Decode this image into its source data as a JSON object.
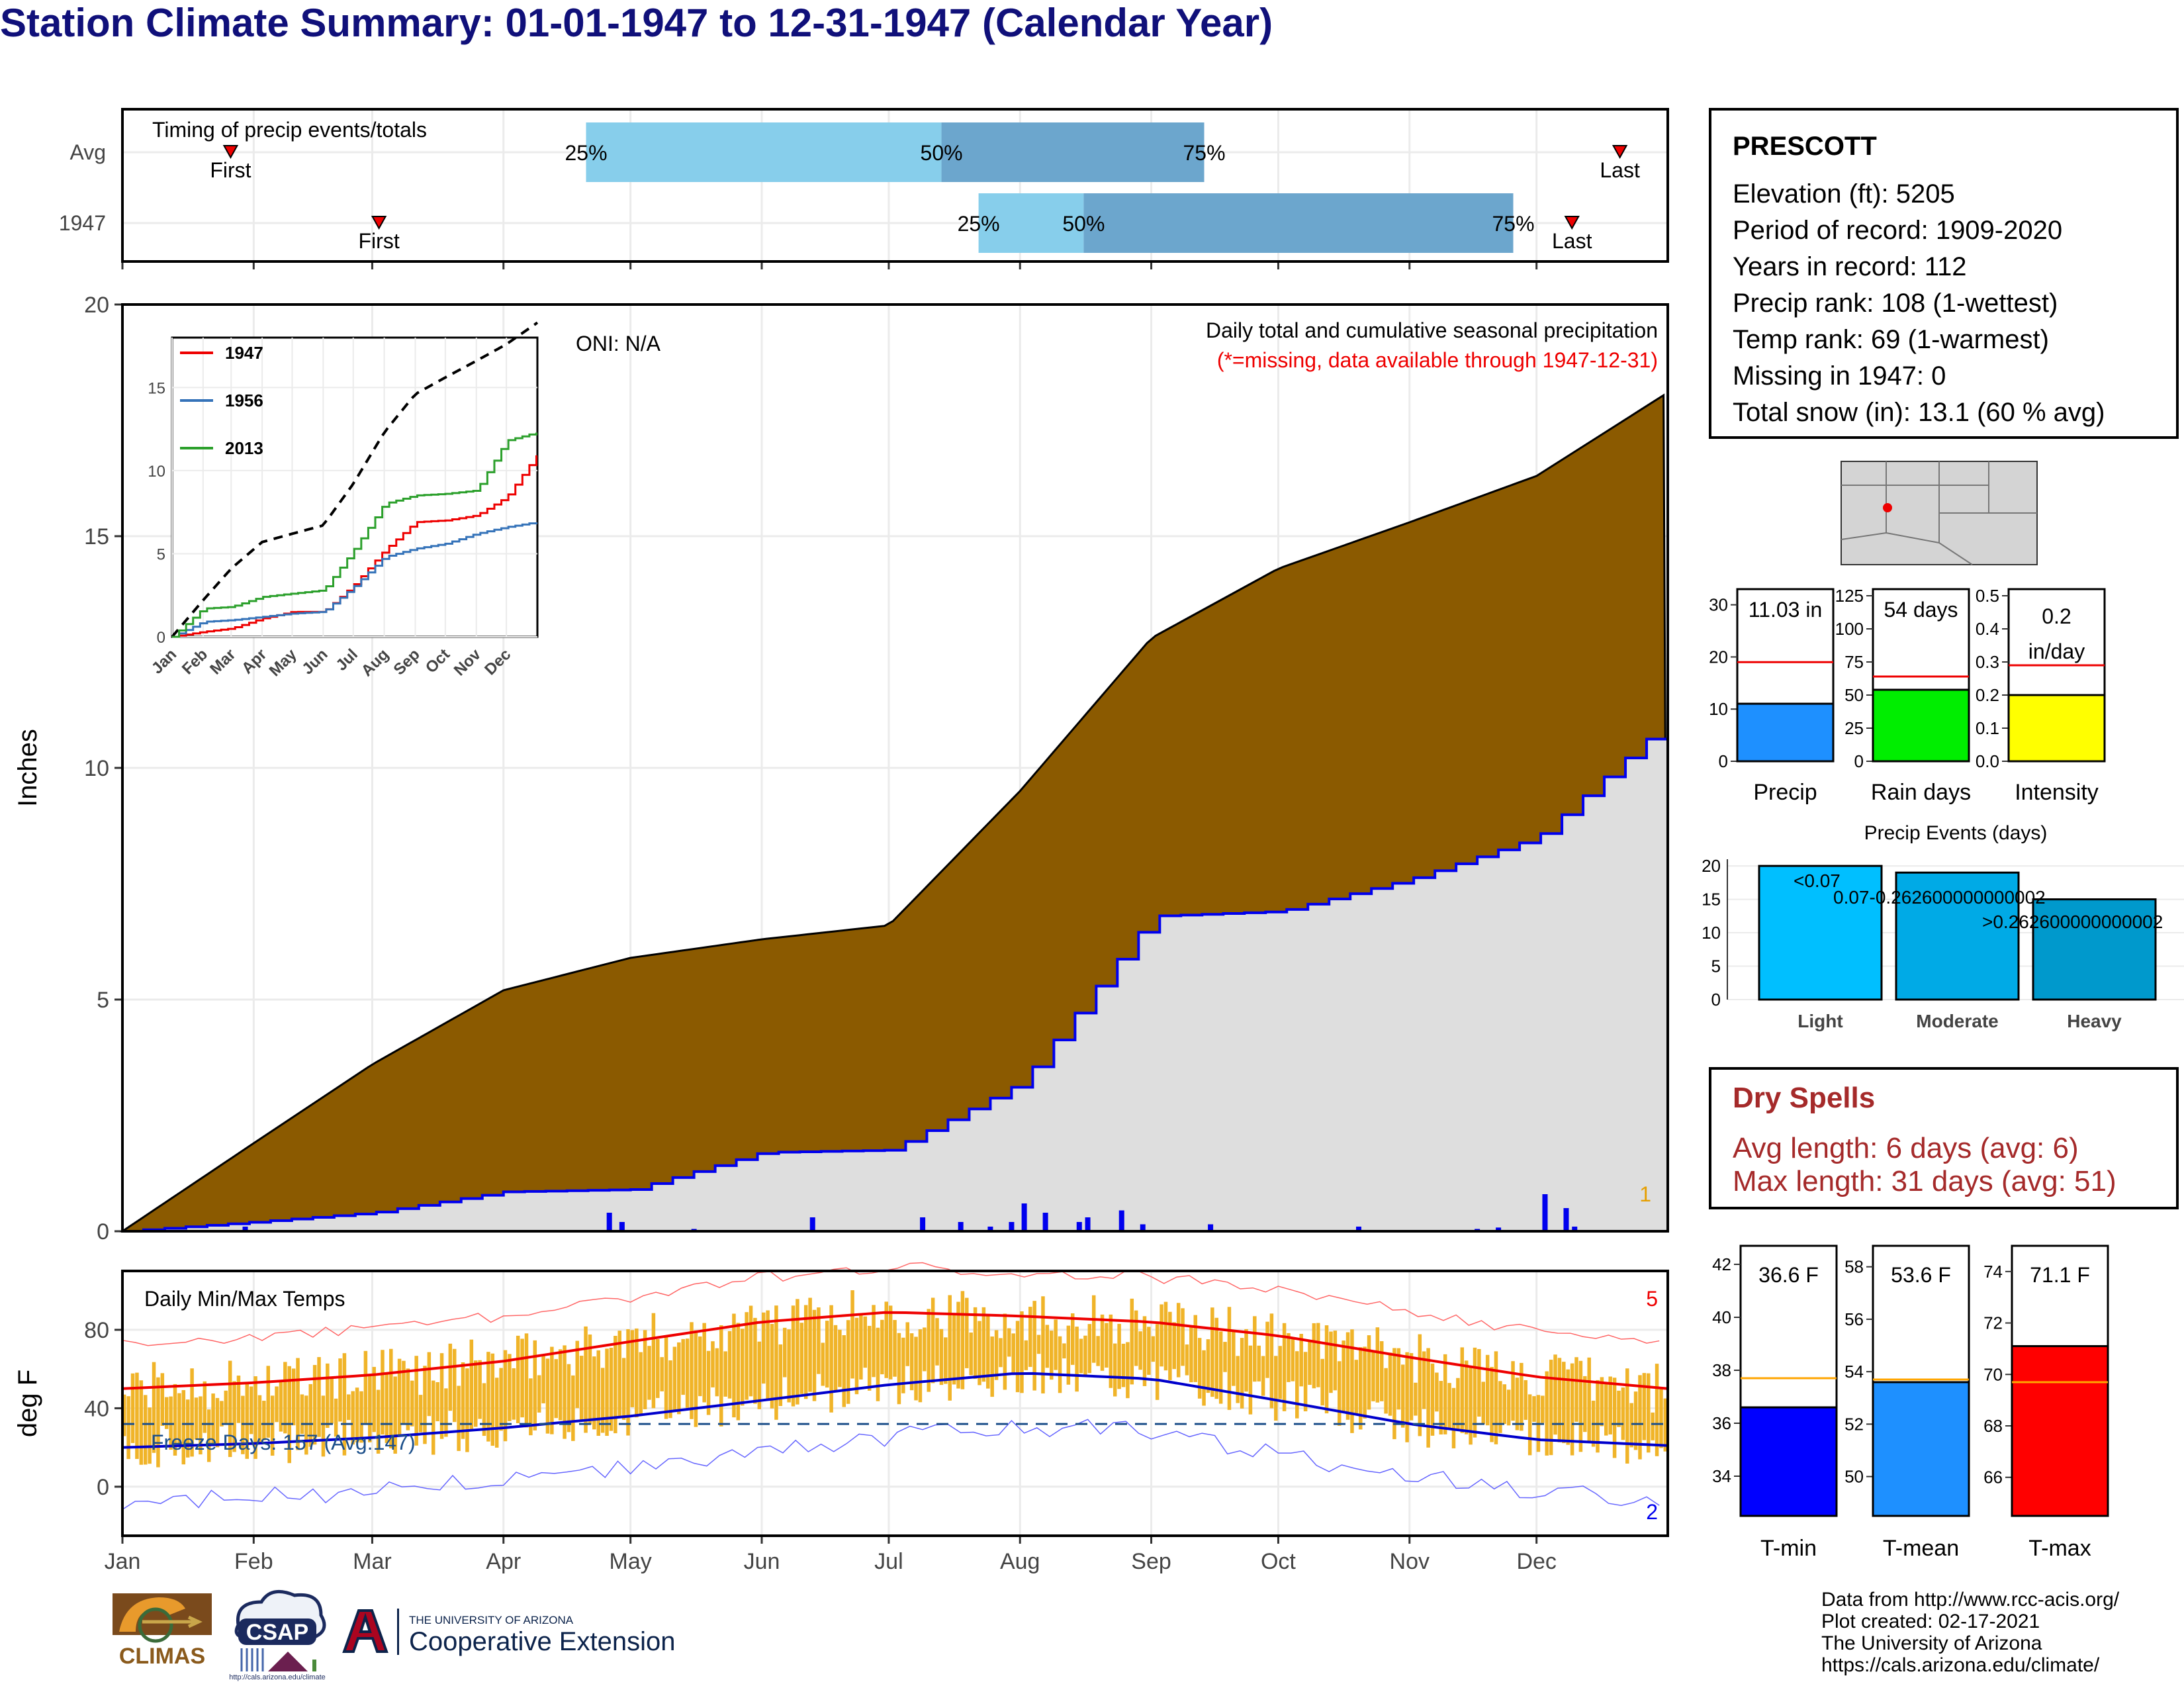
{
  "title": "Station Climate Summary: 01-01-1947 to 12-31-1947 (Calendar Year)",
  "timing": {
    "label": "Timing of precip events/totals",
    "rows": [
      {
        "name": "Avg",
        "first_label": "First",
        "last_label": "Last",
        "p25": "25%",
        "p50": "50%",
        "p75": "75%",
        "first": 0.07,
        "q25": 0.3,
        "q50": 0.53,
        "q75": 0.7,
        "last": 0.969
      },
      {
        "name": "1947",
        "first_label": "First",
        "last_label": "Last",
        "p25": "25%",
        "p50": "50%",
        "p75": "75%",
        "first": 0.166,
        "q25": 0.554,
        "q50": 0.622,
        "q75": 0.9,
        "last": 0.938
      }
    ]
  },
  "station": {
    "name": "PRESCOTT",
    "lines": [
      "Elevation (ft): 5205",
      "Period of record: 1909-2020",
      "Years in record: 112",
      "Precip rank: 108 (1-wettest)",
      "Temp rank: 69 (1-warmest)",
      "Missing in 1947: 0",
      "Total snow (in): 13.1 (60 % avg)"
    ]
  },
  "precip_panel": {
    "ylabel": "Inches",
    "oni": "ONI: N/A",
    "heading": "Daily total and cumulative seasonal precipitation",
    "note": "(*=missing, data available through 1947-12-31)",
    "corner_count": "1",
    "colors": {
      "avg": "#8b5a00",
      "year": "#dedede",
      "line": "#0000ee"
    }
  },
  "temp_panel": {
    "ylabel": "deg F",
    "heading": "Daily Min/Max Temps",
    "freeze": "Freeze Days: 157 (Avg:147)",
    "count_high": "5",
    "count_low": "2"
  },
  "months": [
    "Jan",
    "Feb",
    "Mar",
    "Apr",
    "May",
    "Jun",
    "Jul",
    "Aug",
    "Sep",
    "Oct",
    "Nov",
    "Dec"
  ],
  "inset_months": [
    "Jan",
    "Feb",
    "Mar",
    "Apr",
    "May",
    "Jun",
    "Jul",
    "Aug",
    "Sep",
    "Oct",
    "Nov",
    "Dec"
  ],
  "bars3": [
    {
      "name": "Precip",
      "value_label": "11.03 in",
      "ticks": [
        "0",
        "10",
        "20",
        "30"
      ]
    },
    {
      "name": "Rain days",
      "value_label": "54 days",
      "ticks": [
        "0",
        "25",
        "50",
        "75",
        "100",
        "125"
      ]
    },
    {
      "name": "Intensity",
      "value_label": "0.2 in/day",
      "ticks": [
        "0.0",
        "0.1",
        "0.2",
        "0.3",
        "0.4",
        "0.5"
      ]
    }
  ],
  "events": {
    "title": "Precip Events (days)",
    "ticks": [
      "0",
      "5",
      "10",
      "15",
      "20"
    ],
    "labels": [
      "<0.07",
      "0.07-0.262600000000002",
      ">0.262600000000002"
    ]
  },
  "dry_spells": {
    "title": "Dry Spells",
    "avg": "Avg length: 6 days (avg: 6)",
    "max": "Max length: 31 days (avg: 51)"
  },
  "temp_bars": [
    {
      "name": "T-min",
      "value_label": "36.6 F",
      "ticks": [
        "34",
        "36",
        "38",
        "40",
        "42"
      ]
    },
    {
      "name": "T-mean",
      "value_label": "53.6 F",
      "ticks": [
        "50",
        "52",
        "54",
        "56",
        "58"
      ]
    },
    {
      "name": "T-max",
      "value_label": "71.1 F",
      "ticks": [
        "66",
        "68",
        "70",
        "72",
        "74"
      ]
    }
  ],
  "logos": {
    "climas": "CLIMAS",
    "csap": "CSAP",
    "csap_url": "http://cals.arizona.edu/climate",
    "ua_small": "THE UNIVERSITY OF ARIZONA",
    "ua_big": "Cooperative Extension"
  },
  "footer": [
    "Data from http://www.rcc-acis.org/",
    "Plot created: 02-17-2021",
    "The University of Arizona",
    "https://cals.arizona.edu/climate/"
  ],
  "chart_data": [
    {
      "type": "area",
      "title": "Daily total and cumulative seasonal precipitation",
      "ylabel": "Inches",
      "ylim": [
        0,
        20
      ],
      "yticks": [
        0,
        5,
        10,
        15,
        20
      ],
      "x": [
        0,
        31,
        59,
        90,
        120,
        151,
        181,
        212,
        243,
        273,
        304,
        334,
        365
      ],
      "series": [
        {
          "values": [
            0,
            1.9,
            3.6,
            5.2,
            5.9,
            6.3,
            6.6,
            9.5,
            12.8,
            14.3,
            15.3,
            16.3,
            18.1
          ]
        },
        {
          "values": [
            0,
            0.2,
            0.4,
            0.85,
            0.9,
            1.7,
            1.75,
            3.2,
            6.8,
            6.9,
            7.6,
            8.5,
            11.03
          ]
        }
      ],
      "daily_events": [
        [
          29,
          0.1
        ],
        [
          115,
          0.4
        ],
        [
          118,
          0.2
        ],
        [
          135,
          0.05
        ],
        [
          163,
          0.3
        ],
        [
          189,
          0.3
        ],
        [
          198,
          0.2
        ],
        [
          205,
          0.1
        ],
        [
          210,
          0.2
        ],
        [
          213,
          0.6
        ],
        [
          218,
          0.4
        ],
        [
          226,
          0.2
        ],
        [
          228,
          0.3
        ],
        [
          236,
          0.45
        ],
        [
          241,
          0.15
        ],
        [
          257,
          0.15
        ],
        [
          292,
          0.1
        ],
        [
          320,
          0.05
        ],
        [
          325,
          0.08
        ],
        [
          336,
          0.8
        ],
        [
          341,
          0.5
        ],
        [
          343,
          0.1
        ]
      ]
    },
    {
      "type": "line",
      "title": "",
      "ylim": [
        0,
        18
      ],
      "yticks": [
        0,
        5,
        10,
        15
      ],
      "x": [
        0,
        31,
        59,
        90,
        120,
        151,
        181,
        212,
        243,
        273,
        304,
        334,
        365
      ],
      "series": [
        {
          "name": "",
          "values": [
            0,
            2.2,
            4.1,
            5.7,
            6.2,
            6.7,
            9.2,
            12.3,
            14.6,
            15.6,
            16.6,
            17.6,
            18.9
          ]
        },
        {
          "name": "1947",
          "values": [
            0,
            0.3,
            0.5,
            1.1,
            1.5,
            1.5,
            3.1,
            5.2,
            6.9,
            7.0,
            7.3,
            8.4,
            11.0
          ]
        },
        {
          "name": "1956",
          "values": [
            0,
            0.9,
            1.0,
            1.2,
            1.4,
            1.5,
            3.0,
            4.8,
            5.3,
            5.6,
            6.2,
            6.6,
            6.9
          ]
        },
        {
          "name": "2013",
          "values": [
            0,
            1.7,
            1.8,
            2.4,
            2.6,
            2.8,
            5.2,
            8.0,
            8.5,
            8.6,
            8.8,
            11.8,
            12.3
          ]
        }
      ]
    },
    {
      "type": "line",
      "title": "Daily Min/Max Temps",
      "ylabel": "deg F",
      "ylim": [
        -25,
        110
      ],
      "yticks": [
        0,
        40,
        80
      ],
      "x": [
        0,
        31,
        59,
        90,
        120,
        151,
        181,
        212,
        243,
        273,
        304,
        334,
        365
      ],
      "series": [
        {
          "values": [
            50,
            53,
            57,
            64,
            74,
            84,
            89,
            87,
            84,
            77,
            66,
            56,
            50
          ]
        },
        {
          "values": [
            20,
            22,
            25,
            30,
            36,
            44,
            52,
            58,
            55,
            44,
            32,
            24,
            21
          ]
        }
      ],
      "freeze_line": 32
    },
    {
      "type": "bar",
      "categories": [
        "Precip",
        "Rain days",
        "Intensity"
      ],
      "values": [
        11.03,
        54,
        0.2
      ],
      "averages": [
        19,
        64,
        0.29
      ],
      "ylims": [
        [
          0,
          33
        ],
        [
          0,
          130
        ],
        [
          0,
          0.52
        ]
      ]
    },
    {
      "type": "bar",
      "title": "Precip Events (days)",
      "categories": [
        "Light",
        "Moderate",
        "Heavy"
      ],
      "values": [
        20,
        19,
        15
      ],
      "ylim": [
        0,
        21
      ]
    },
    {
      "type": "bar",
      "categories": [
        "T-min",
        "T-mean",
        "T-max"
      ],
      "values": [
        36.6,
        53.6,
        71.1
      ],
      "averages": [
        37.7,
        53.7,
        69.7
      ],
      "ylims": [
        [
          32.5,
          42.7
        ],
        [
          48.5,
          58.8
        ],
        [
          64.5,
          75
        ]
      ]
    }
  ]
}
